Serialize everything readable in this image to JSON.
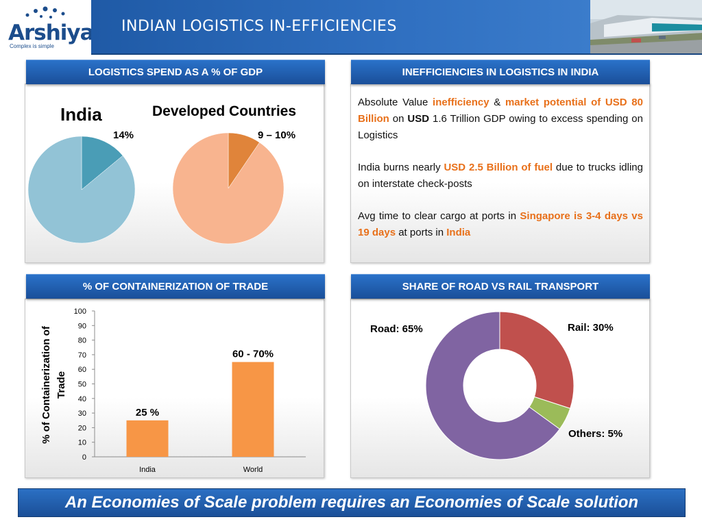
{
  "header": {
    "title": "INDIAN LOGISTICS IN-EFFICIENCIES",
    "logo_text": "Arshiya",
    "logo_tagline": "Complex is simple"
  },
  "panels": {
    "gdp": {
      "title": "LOGISTICS SPEND AS A % OF GDP",
      "india_label": "India",
      "india_value_label": "14%",
      "developed_label": "Developed Countries",
      "developed_value_label": "9 – 10%"
    },
    "ineff": {
      "title": "INEFFICIENCIES IN LOGISTICS IN INDIA",
      "p1": {
        "a": "Absolute Value ",
        "b": "inefficiency",
        "c": " & ",
        "d": "market potential of USD 80 Billion",
        "e": " on ",
        "f": "USD",
        "g": " 1.6 Trillion GDP owing to excess spending on Logistics"
      },
      "p2": {
        "a": "India burns nearly ",
        "b": "USD 2.5 Billion of fuel",
        "c": " due to trucks idling on interstate check-posts"
      },
      "p3": {
        "a": "Avg time to clear cargo at ports in ",
        "b": "Singapore is 3-4 days vs 19 days",
        "c": " at ports in  ",
        "d": "India"
      }
    },
    "container": {
      "title": "% OF CONTAINERIZATION OF TRADE"
    },
    "road_rail": {
      "title": "SHARE OF ROAD VS RAIL TRANSPORT"
    }
  },
  "banner": {
    "text": "An Economies of Scale problem requires an Economies of Scale solution"
  },
  "colors": {
    "header_blue": "#1f5aa6",
    "accent_orange": "#e8701a",
    "india_slice": "#4a9db6",
    "india_rest": "#92c3d6",
    "dev_slice": "#e0843a",
    "dev_rest": "#f8b48f",
    "bar": "#f79646",
    "road": "#8064a2",
    "rail": "#c0504d",
    "others": "#9bbb59"
  },
  "chart_data": [
    {
      "type": "pie",
      "title": "India",
      "slices": [
        {
          "label": "14%",
          "value": 14
        },
        {
          "value": 86
        }
      ]
    },
    {
      "type": "pie",
      "title": "Developed Countries",
      "slices": [
        {
          "label": "9 – 10%",
          "value": 9.5
        },
        {
          "value": 90.5
        }
      ]
    },
    {
      "type": "bar",
      "categories": [
        "India",
        "World"
      ],
      "values": [
        25,
        65
      ],
      "data_labels": [
        "25 %",
        "60 - 70%"
      ],
      "ylabel": "% of Containerization of Trade",
      "ylim": [
        0,
        100
      ],
      "yticks": [
        0,
        10,
        20,
        30,
        40,
        50,
        60,
        70,
        80,
        90,
        100
      ],
      "grid": false
    },
    {
      "type": "pie",
      "subtype": "donut",
      "slices": [
        {
          "label": "Rail: 30%",
          "value": 30
        },
        {
          "label": "Others: 5%",
          "value": 5
        },
        {
          "label": "Road: 65%",
          "value": 65
        }
      ]
    }
  ]
}
